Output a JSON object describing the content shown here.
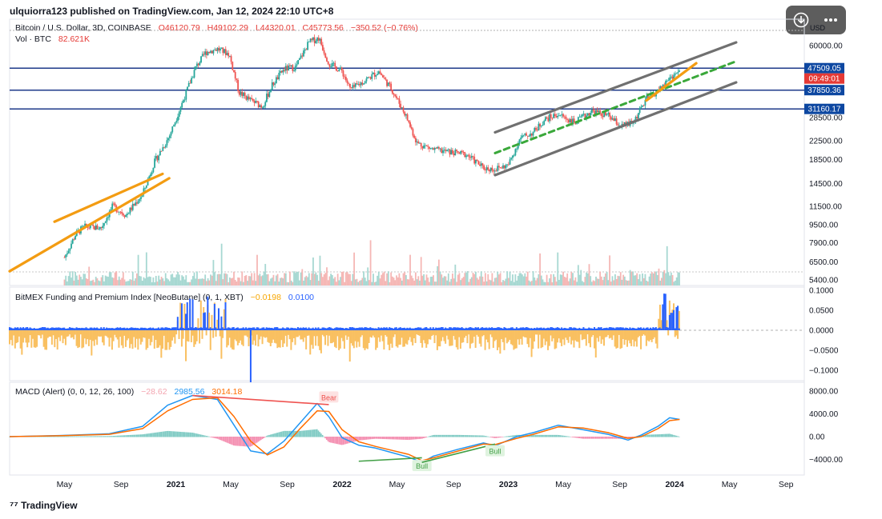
{
  "header": {
    "publisher": "ulquiorra123 published on TradingView.com, Jan 12, 2024 22:10 UTC+8"
  },
  "main_pane": {
    "symbol": "Bitcoin / U.S. Dollar, 3D, COINBASE",
    "open": "O46120.79",
    "high": "H49102.29",
    "low": "L44320.01",
    "close": "C45773.56",
    "change": "−350.52 (−0.76%)",
    "vol_label": "Vol · BTC",
    "vol_value": "82.621K",
    "currency": "USD"
  },
  "funding_pane": {
    "title": "BitMEX Funding and Premium Index [NeoButane] (0, 1, XBT)",
    "value1": "−0.0198",
    "value2": "0.0100"
  },
  "macd_pane": {
    "title": "MACD (Alert) (0, 0, 12, 26, 100)",
    "hist": "−28.62",
    "macd": "2985.56",
    "signal": "3014.18"
  },
  "toolbar": {
    "download_icon": "download-icon",
    "more_icon": "more-icon"
  },
  "footer": {
    "logo_text": "TradingView"
  },
  "chart_data": [
    {
      "type": "candlestick",
      "title": "Bitcoin / U.S. Dollar, 3D, COINBASE",
      "y_scale": "log",
      "price_ticks": [
        "60000.00",
        "47509.05",
        "37850.36",
        "31160.17",
        "28500.00",
        "22500.00",
        "18500.00",
        "14500.00",
        "11500.00",
        "9500.00",
        "7900.00",
        "6500.00",
        "5400.00"
      ],
      "price_tick_values": [
        60000,
        47509.05,
        37850.36,
        31160.17,
        28500,
        22500,
        18500,
        14500,
        11500,
        9500,
        7900,
        6500,
        5400
      ],
      "horizontal_levels": [
        47509.05,
        37850.36,
        31160.17
      ],
      "highlighted_labels": [
        {
          "text": "47509.05",
          "color": "#0d47a1"
        },
        {
          "text": "09:49:01",
          "color": "#e53935"
        },
        {
          "text": "37850.36",
          "color": "#0d47a1"
        },
        {
          "text": "31160.17",
          "color": "#0d47a1"
        }
      ],
      "x_ticks": [
        "May",
        "Sep",
        "2021",
        "May",
        "Sep",
        "2022",
        "May",
        "Sep",
        "2023",
        "May",
        "Sep",
        "2024",
        "May",
        "Sep"
      ],
      "price_path": [
        [
          2020.33,
          6800
        ],
        [
          2020.4,
          8700
        ],
        [
          2020.45,
          9300
        ],
        [
          2020.55,
          9200
        ],
        [
          2020.62,
          11500
        ],
        [
          2020.7,
          10500
        ],
        [
          2020.8,
          13000
        ],
        [
          2020.87,
          18000
        ],
        [
          2020.96,
          23500
        ],
        [
          2021.05,
          35000
        ],
        [
          2021.12,
          48000
        ],
        [
          2021.18,
          56000
        ],
        [
          2021.25,
          58000
        ],
        [
          2021.32,
          55000
        ],
        [
          2021.38,
          37000
        ],
        [
          2021.45,
          34000
        ],
        [
          2021.52,
          32000
        ],
        [
          2021.58,
          40000
        ],
        [
          2021.65,
          47000
        ],
        [
          2021.72,
          48000
        ],
        [
          2021.8,
          62000
        ],
        [
          2021.86,
          65000
        ],
        [
          2021.92,
          50000
        ],
        [
          2022.0,
          46000
        ],
        [
          2022.05,
          38000
        ],
        [
          2022.12,
          41000
        ],
        [
          2022.22,
          46000
        ],
        [
          2022.3,
          38000
        ],
        [
          2022.38,
          29500
        ],
        [
          2022.45,
          22000
        ],
        [
          2022.55,
          20500
        ],
        [
          2022.65,
          20000
        ],
        [
          2022.75,
          19500
        ],
        [
          2022.85,
          17000
        ],
        [
          2022.92,
          16800
        ],
        [
          2023.0,
          17500
        ],
        [
          2023.07,
          23000
        ],
        [
          2023.15,
          24500
        ],
        [
          2023.22,
          28000
        ],
        [
          2023.3,
          29500
        ],
        [
          2023.4,
          27000
        ],
        [
          2023.5,
          30500
        ],
        [
          2023.6,
          29000
        ],
        [
          2023.68,
          26000
        ],
        [
          2023.75,
          27000
        ],
        [
          2023.83,
          34500
        ],
        [
          2023.9,
          37500
        ],
        [
          2023.97,
          43000
        ],
        [
          2024.03,
          46000
        ]
      ],
      "channel_lines": [
        {
          "role": "upper",
          "color": "#707070",
          "from": [
            2022.92,
            24500
          ],
          "to": [
            2024.37,
            62000
          ]
        },
        {
          "role": "lower",
          "color": "#707070",
          "from": [
            2022.92,
            15800
          ],
          "to": [
            2024.37,
            41000
          ]
        },
        {
          "role": "mid",
          "color": "#3aa83a",
          "dashed": true,
          "from": [
            2022.92,
            19800
          ],
          "to": [
            2024.37,
            51000
          ]
        },
        {
          "role": "orange-short",
          "color": "#f39c12",
          "from": [
            2023.83,
            34000
          ],
          "to": [
            2024.13,
            50000
          ]
        },
        {
          "role": "wedge-upper",
          "color": "#f39c12",
          "from": [
            2020.27,
            9800
          ],
          "to": [
            2020.92,
            16000
          ]
        },
        {
          "role": "wedge-lower",
          "color": "#f39c12",
          "from": [
            2020.0,
            5900
          ],
          "to": [
            2020.96,
            15300
          ]
        }
      ]
    },
    {
      "type": "bar",
      "title": "BitMEX Funding and Premium Index [NeoButane] (0, 1, XBT)",
      "y_ticks": [
        "0.1000",
        "0.0500",
        "0.0000",
        "−0.0500",
        "−0.1000"
      ],
      "y_tick_values": [
        0.1,
        0.05,
        0,
        -0.05,
        -0.1
      ],
      "series": [
        {
          "name": "Premium",
          "color": "#f9c061"
        },
        {
          "name": "Funding",
          "color": "#2962ff"
        }
      ]
    },
    {
      "type": "line",
      "title": "MACD (Alert) (0, 0, 12, 26, 100)",
      "y_ticks": [
        "8000.00",
        "4000.00",
        "0.00",
        "−4000.00"
      ],
      "y_tick_values": [
        8000,
        4000,
        0,
        -4000
      ],
      "macd_path": [
        [
          2020.0,
          0
        ],
        [
          2020.3,
          200
        ],
        [
          2020.6,
          500
        ],
        [
          2020.8,
          1800
        ],
        [
          2020.95,
          5500
        ],
        [
          2021.1,
          7200
        ],
        [
          2021.25,
          6500
        ],
        [
          2021.35,
          2000
        ],
        [
          2021.45,
          -2500
        ],
        [
          2021.55,
          -3000
        ],
        [
          2021.65,
          -800
        ],
        [
          2021.75,
          2500
        ],
        [
          2021.85,
          5800
        ],
        [
          2021.92,
          3500
        ],
        [
          2022.0,
          -200
        ],
        [
          2022.1,
          -1500
        ],
        [
          2022.2,
          -2000
        ],
        [
          2022.3,
          -2800
        ],
        [
          2022.4,
          -3600
        ],
        [
          2022.48,
          -4500
        ],
        [
          2022.55,
          -3400
        ],
        [
          2022.7,
          -2200
        ],
        [
          2022.85,
          -1100
        ],
        [
          2022.92,
          -1600
        ],
        [
          2023.05,
          0
        ],
        [
          2023.15,
          700
        ],
        [
          2023.3,
          2000
        ],
        [
          2023.45,
          1200
        ],
        [
          2023.6,
          400
        ],
        [
          2023.72,
          -600
        ],
        [
          2023.8,
          300
        ],
        [
          2023.9,
          1800
        ],
        [
          2023.97,
          3300
        ],
        [
          2024.03,
          3000
        ]
      ],
      "signal_path": [
        [
          2020.0,
          0
        ],
        [
          2020.3,
          150
        ],
        [
          2020.6,
          400
        ],
        [
          2020.8,
          1400
        ],
        [
          2020.95,
          4500
        ],
        [
          2021.1,
          6500
        ],
        [
          2021.25,
          6800
        ],
        [
          2021.35,
          3500
        ],
        [
          2021.45,
          -800
        ],
        [
          2021.55,
          -3200
        ],
        [
          2021.65,
          -1800
        ],
        [
          2021.75,
          1500
        ],
        [
          2021.85,
          4500
        ],
        [
          2021.92,
          4400
        ],
        [
          2022.0,
          1200
        ],
        [
          2022.1,
          -900
        ],
        [
          2022.2,
          -1700
        ],
        [
          2022.3,
          -2400
        ],
        [
          2022.4,
          -3100
        ],
        [
          2022.48,
          -4200
        ],
        [
          2022.55,
          -3700
        ],
        [
          2022.7,
          -2500
        ],
        [
          2022.85,
          -1300
        ],
        [
          2022.92,
          -1400
        ],
        [
          2023.05,
          -300
        ],
        [
          2023.15,
          400
        ],
        [
          2023.3,
          1700
        ],
        [
          2023.45,
          1500
        ],
        [
          2023.6,
          700
        ],
        [
          2023.72,
          -300
        ],
        [
          2023.8,
          0
        ],
        [
          2023.9,
          1400
        ],
        [
          2023.97,
          2800
        ],
        [
          2024.03,
          3000
        ]
      ],
      "annotations": [
        {
          "text": "Bear",
          "kind": "bear",
          "line_from": [
            2021.1,
            7200
          ],
          "line_to": [
            2021.92,
            5600
          ],
          "at": [
            2021.92,
            6800
          ]
        },
        {
          "text": "Bull",
          "kind": "bull",
          "line_from": [
            2022.1,
            -4300
          ],
          "line_to": [
            2022.48,
            -3700
          ],
          "at": [
            2022.48,
            -5200
          ]
        },
        {
          "text": "Bull",
          "kind": "bull",
          "line_from": [
            2022.48,
            -4500
          ],
          "line_to": [
            2022.92,
            -1300
          ],
          "at": [
            2022.92,
            -2600
          ]
        }
      ]
    }
  ]
}
